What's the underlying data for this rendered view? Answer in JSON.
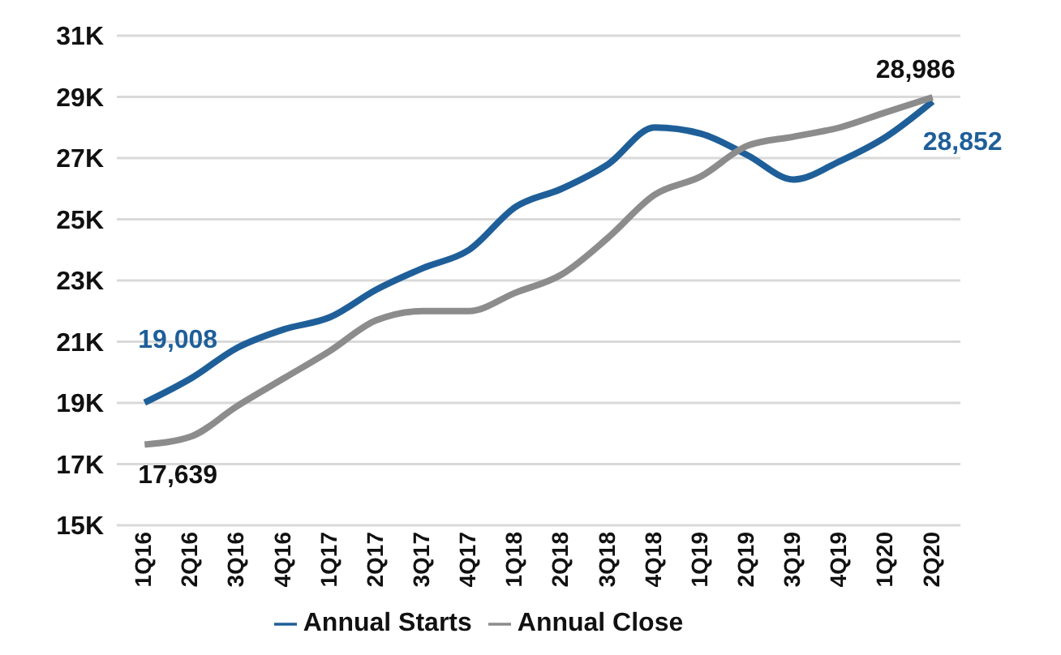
{
  "chart_data": {
    "type": "line",
    "categories": [
      "1Q16",
      "2Q16",
      "3Q16",
      "4Q16",
      "1Q17",
      "2Q17",
      "3Q17",
      "4Q17",
      "1Q18",
      "2Q18",
      "3Q18",
      "4Q18",
      "1Q19",
      "2Q19",
      "3Q19",
      "4Q19",
      "1Q20",
      "2Q20"
    ],
    "series": [
      {
        "name": "Annual Starts",
        "color": "#1f5f99",
        "values": [
          19008,
          19800,
          20800,
          21400,
          21800,
          22700,
          23400,
          24000,
          25400,
          26000,
          26800,
          28000,
          27800,
          27100,
          26300,
          26900,
          27700,
          28852
        ],
        "value_labels": [
          "19,008",
          null,
          null,
          null,
          null,
          null,
          null,
          null,
          null,
          null,
          null,
          null,
          null,
          null,
          null,
          null,
          null,
          "28,852"
        ]
      },
      {
        "name": "Annual Close",
        "color": "#8c8c8c",
        "values": [
          17639,
          17900,
          18900,
          19800,
          20700,
          21700,
          22000,
          22000,
          22600,
          23200,
          24400,
          25800,
          26400,
          27400,
          27700,
          28000,
          28500,
          28986
        ],
        "value_labels": [
          "17,639",
          null,
          null,
          null,
          null,
          null,
          null,
          null,
          null,
          null,
          null,
          null,
          null,
          null,
          null,
          null,
          null,
          "28,986"
        ]
      }
    ],
    "ylim": [
      15000,
      31000
    ],
    "yticks": [
      {
        "value": 15000,
        "label": "15K"
      },
      {
        "value": 17000,
        "label": "17K"
      },
      {
        "value": 19000,
        "label": "19K"
      },
      {
        "value": 21000,
        "label": "21K"
      },
      {
        "value": 23000,
        "label": "23K"
      },
      {
        "value": 25000,
        "label": "25K"
      },
      {
        "value": 27000,
        "label": "27K"
      },
      {
        "value": 29000,
        "label": "29K"
      },
      {
        "value": 31000,
        "label": "31K"
      }
    ],
    "grid": "y",
    "legend": "bottom",
    "marker": "none",
    "line_style": "solid"
  }
}
